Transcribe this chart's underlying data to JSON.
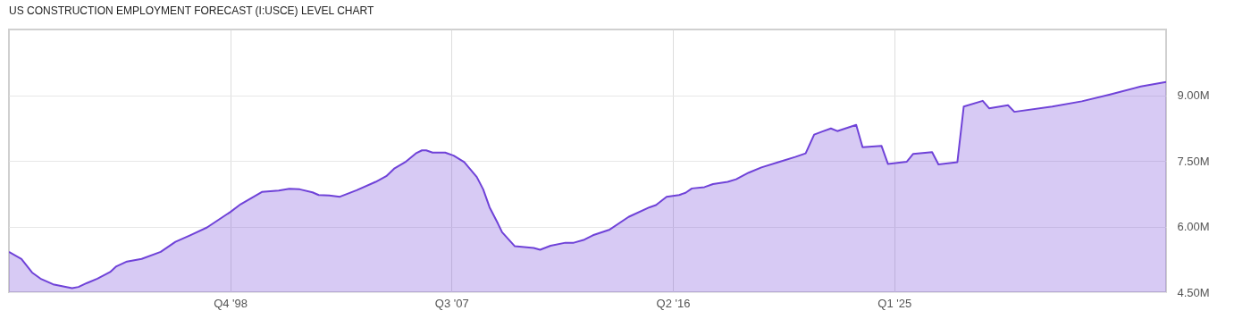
{
  "chart_data": {
    "type": "area",
    "title": "US CONSTRUCTION EMPLOYMENT FORECAST (I:USCE) LEVEL CHART",
    "x": [
      "1990-01",
      "1990-07",
      "1990-12",
      "1991-04",
      "1991-10",
      "1992-07",
      "1992-10",
      "1993-02",
      "1993-07",
      "1994-01",
      "1994-04",
      "1994-09",
      "1995-04",
      "1996-01",
      "1996-08",
      "1997-03",
      "1997-11",
      "1998-10",
      "1999-03",
      "2000-01",
      "2000-09",
      "2001-02",
      "2001-07",
      "2002-01",
      "2002-04",
      "2002-09",
      "2003-02",
      "2003-10",
      "2004-07",
      "2004-12",
      "2005-04",
      "2005-09",
      "2006-02",
      "2006-05",
      "2006-07",
      "2006-10",
      "2007-04",
      "2007-08",
      "2008-01",
      "2008-07",
      "2008-10",
      "2009-01",
      "2009-05",
      "2009-07",
      "2010-01",
      "2010-10",
      "2011-01",
      "2011-06",
      "2012-01",
      "2012-05",
      "2012-10",
      "2013-02",
      "2013-10",
      "2014-07",
      "2015-05",
      "2015-08",
      "2016-01",
      "2016-07",
      "2016-10",
      "2017-01",
      "2017-07",
      "2017-11",
      "2018-06",
      "2018-10",
      "2019-04",
      "2019-10",
      "2020-06",
      "2021-02",
      "2021-07",
      "2021-11",
      "2022-03",
      "2022-07",
      "2022-10",
      "2023-07",
      "2023-10",
      "2024-07",
      "2024-10",
      "2025-07",
      "2025-10",
      "2026-07",
      "2026-10",
      "2027-07",
      "2027-10",
      "2028-07",
      "2028-10",
      "2029-07",
      "2029-10",
      "2031-04",
      "2032-06",
      "2033-07",
      "2034-10",
      "2035-10"
    ],
    "series": [
      {
        "color": "#6f42d8",
        "values": [
          5.42,
          5.26,
          4.95,
          4.81,
          4.68,
          4.59,
          4.62,
          4.71,
          4.81,
          4.96,
          5.09,
          5.2,
          5.26,
          5.42,
          5.65,
          5.8,
          5.98,
          6.33,
          6.51,
          6.79,
          6.82,
          6.86,
          6.85,
          6.78,
          6.72,
          6.71,
          6.68,
          6.83,
          7.02,
          7.15,
          7.33,
          7.47,
          7.67,
          7.74,
          7.74,
          7.69,
          7.69,
          7.62,
          7.47,
          7.13,
          6.85,
          6.44,
          6.07,
          5.87,
          5.55,
          5.51,
          5.47,
          5.56,
          5.63,
          5.63,
          5.7,
          5.8,
          5.93,
          6.22,
          6.44,
          6.49,
          6.68,
          6.72,
          6.77,
          6.87,
          6.9,
          6.97,
          7.02,
          7.08,
          7.23,
          7.35,
          7.47,
          7.59,
          7.67,
          8.1,
          8.17,
          8.24,
          8.18,
          8.32,
          7.81,
          7.84,
          7.43,
          7.48,
          7.66,
          7.7,
          7.42,
          7.47,
          8.74,
          8.87,
          8.7,
          8.77,
          8.62,
          8.74,
          8.86,
          9.01,
          9.2,
          9.3
        ]
      }
    ],
    "xlim": [
      "1990-01",
      "2035-10"
    ],
    "xticks": [
      {
        "value": "1998-10",
        "label": "Q4 '98"
      },
      {
        "value": "2007-07",
        "label": "Q3 '07"
      },
      {
        "value": "2016-04",
        "label": "Q2 '16"
      },
      {
        "value": "2025-01",
        "label": "Q1 '25"
      }
    ],
    "ylim": [
      4.5,
      10.5
    ],
    "yticks": [
      {
        "value": 4.5,
        "label": "4.50M"
      },
      {
        "value": 6,
        "label": "6.00M"
      },
      {
        "value": 7.5,
        "label": "7.50M"
      },
      {
        "value": 9,
        "label": "9.00M"
      }
    ],
    "grid": true,
    "marker": "none",
    "line_style": "solid"
  }
}
